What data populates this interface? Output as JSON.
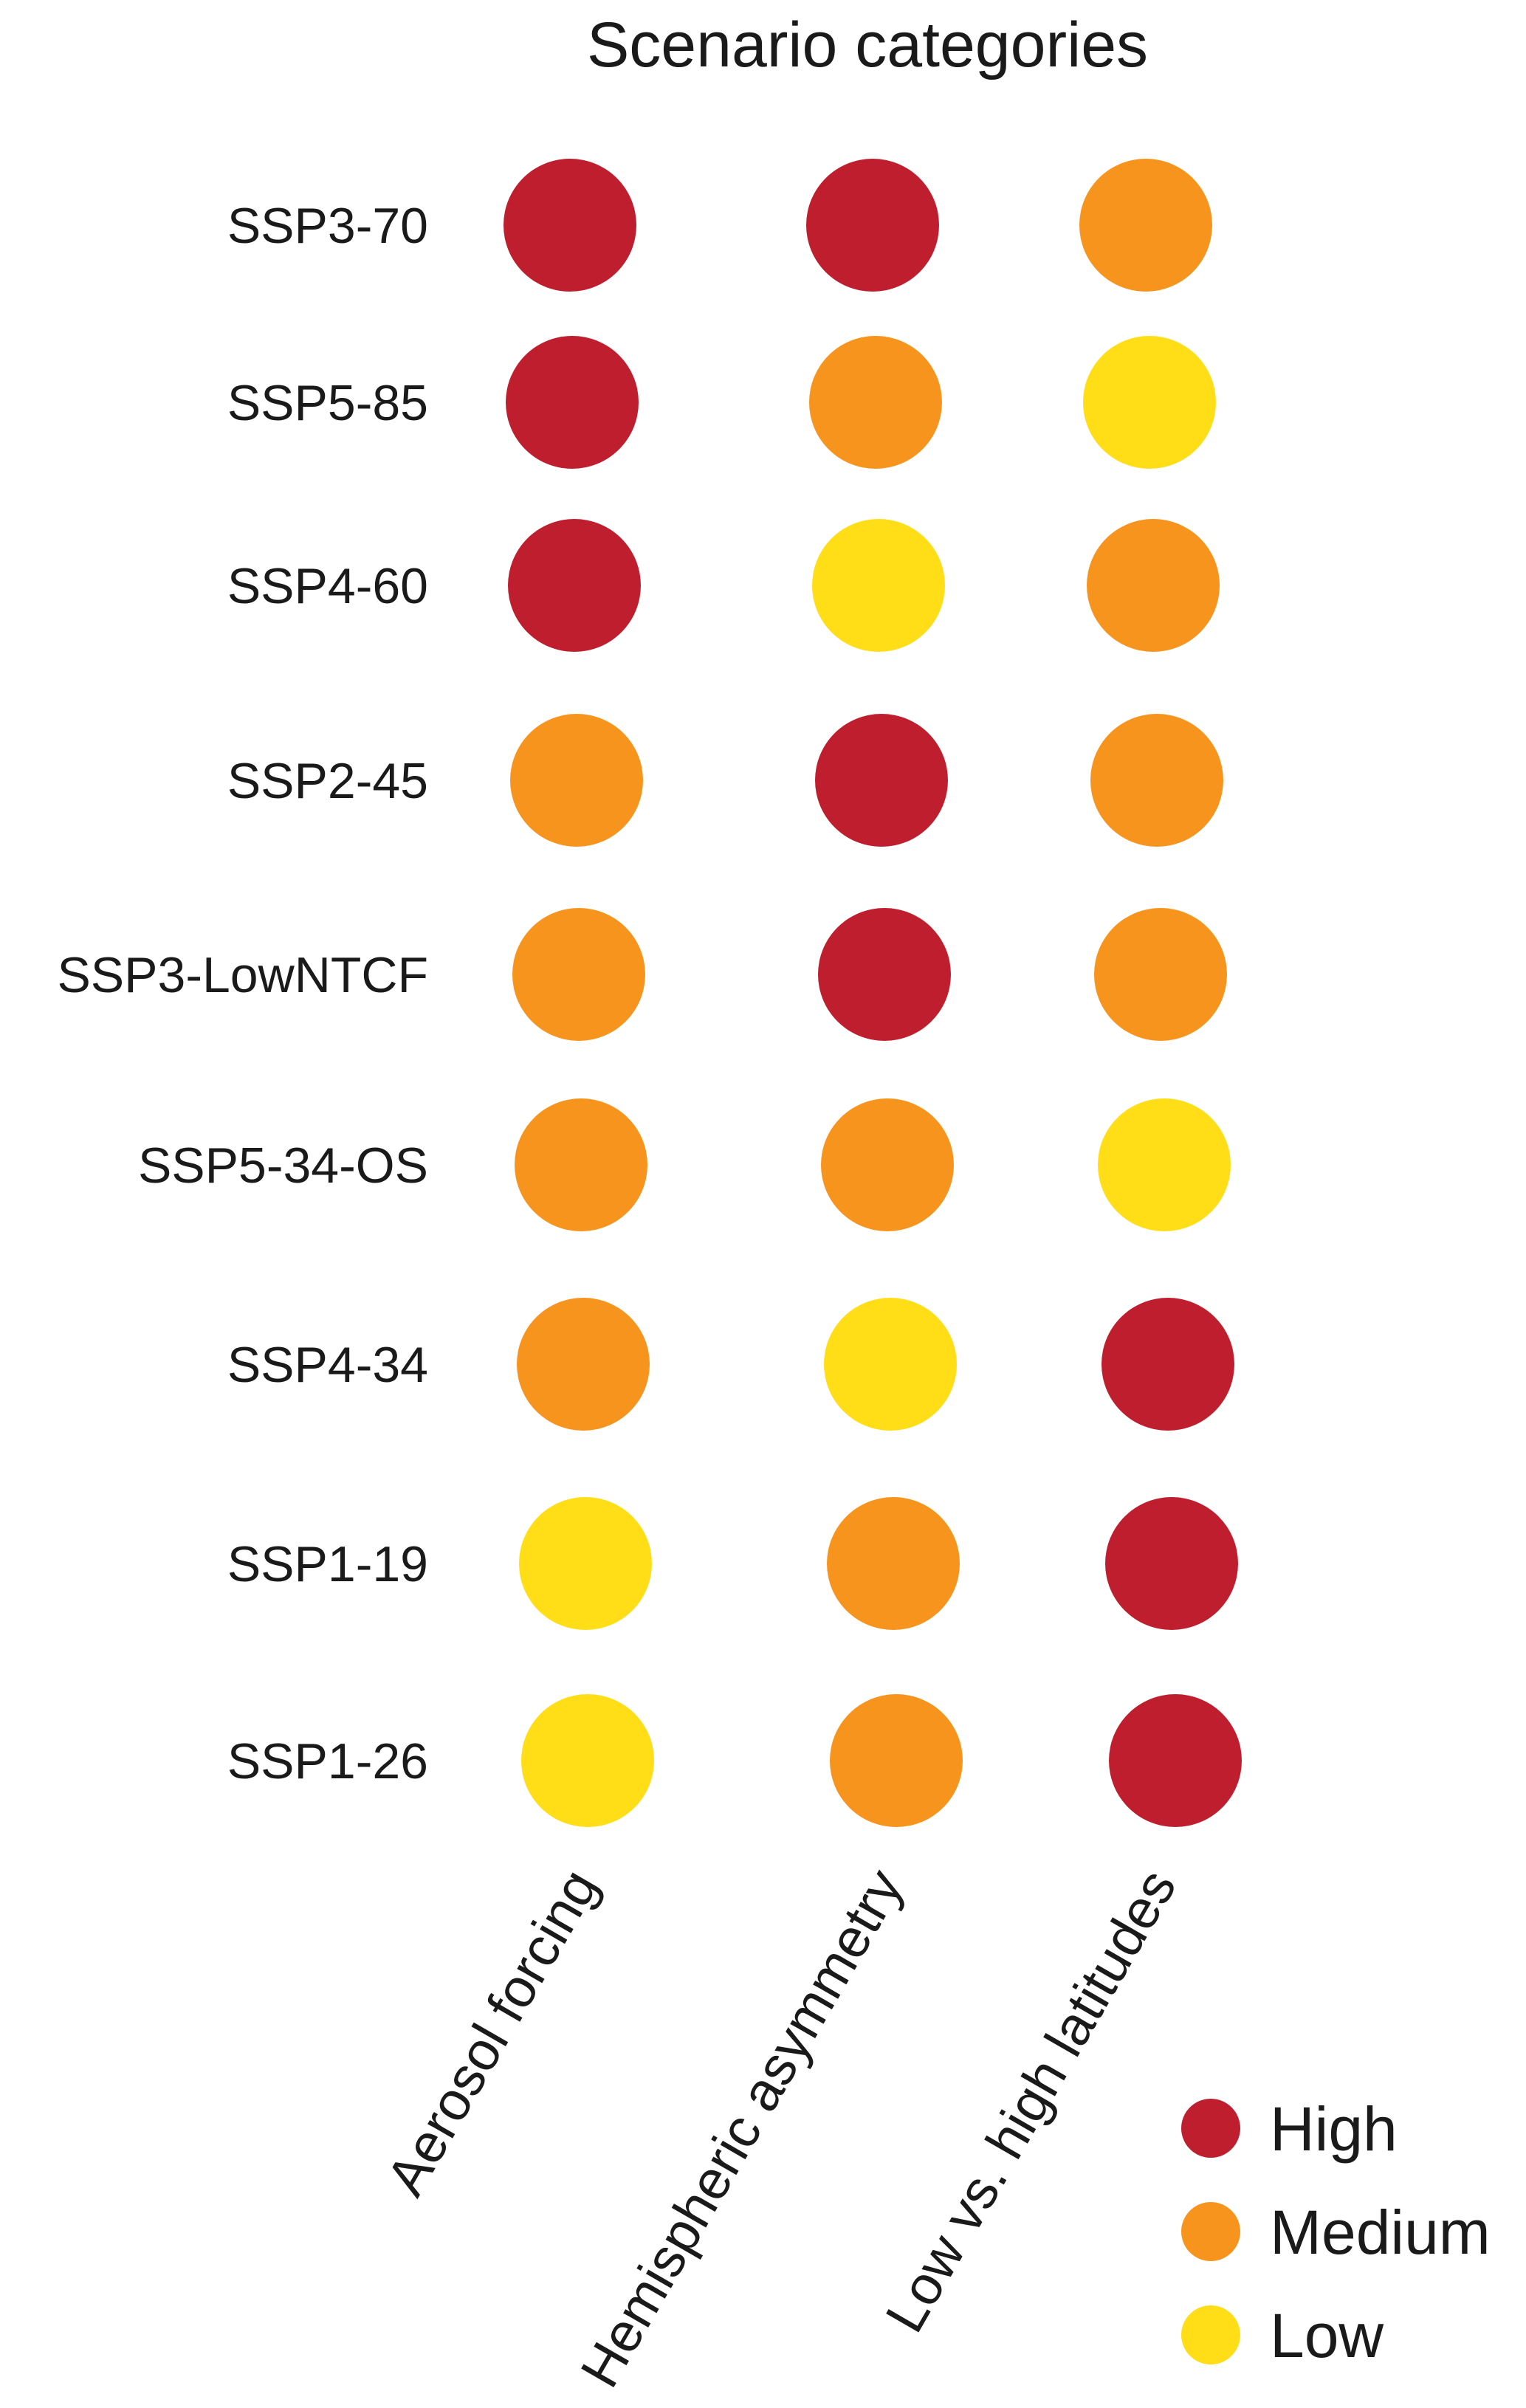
{
  "chart_data": {
    "type": "table",
    "title": "Scenario categories",
    "rows": [
      "SSP3-70",
      "SSP5-85",
      "SSP4-60",
      "SSP2-45",
      "SSP3-LowNTCF",
      "SSP5-34-OS",
      "SSP4-34",
      "SSP1-19",
      "SSP1-26"
    ],
    "columns": [
      "Aerosol forcing",
      "Hemispheric asymmetry",
      "Low vs. high latitudes"
    ],
    "values": [
      [
        "High",
        "High",
        "Medium"
      ],
      [
        "High",
        "Medium",
        "Low"
      ],
      [
        "High",
        "Low",
        "Medium"
      ],
      [
        "Medium",
        "High",
        "Medium"
      ],
      [
        "Medium",
        "High",
        "Medium"
      ],
      [
        "Medium",
        "Medium",
        "Low"
      ],
      [
        "Medium",
        "Low",
        "High"
      ],
      [
        "Low",
        "Medium",
        "High"
      ],
      [
        "Low",
        "Medium",
        "High"
      ]
    ],
    "legend": {
      "placement": "bottom-right",
      "items": [
        {
          "label": "High",
          "color": "#BE1E2D"
        },
        {
          "label": "Medium",
          "color": "#F7941D"
        },
        {
          "label": "Low",
          "color": "#FFDE17"
        }
      ]
    }
  }
}
